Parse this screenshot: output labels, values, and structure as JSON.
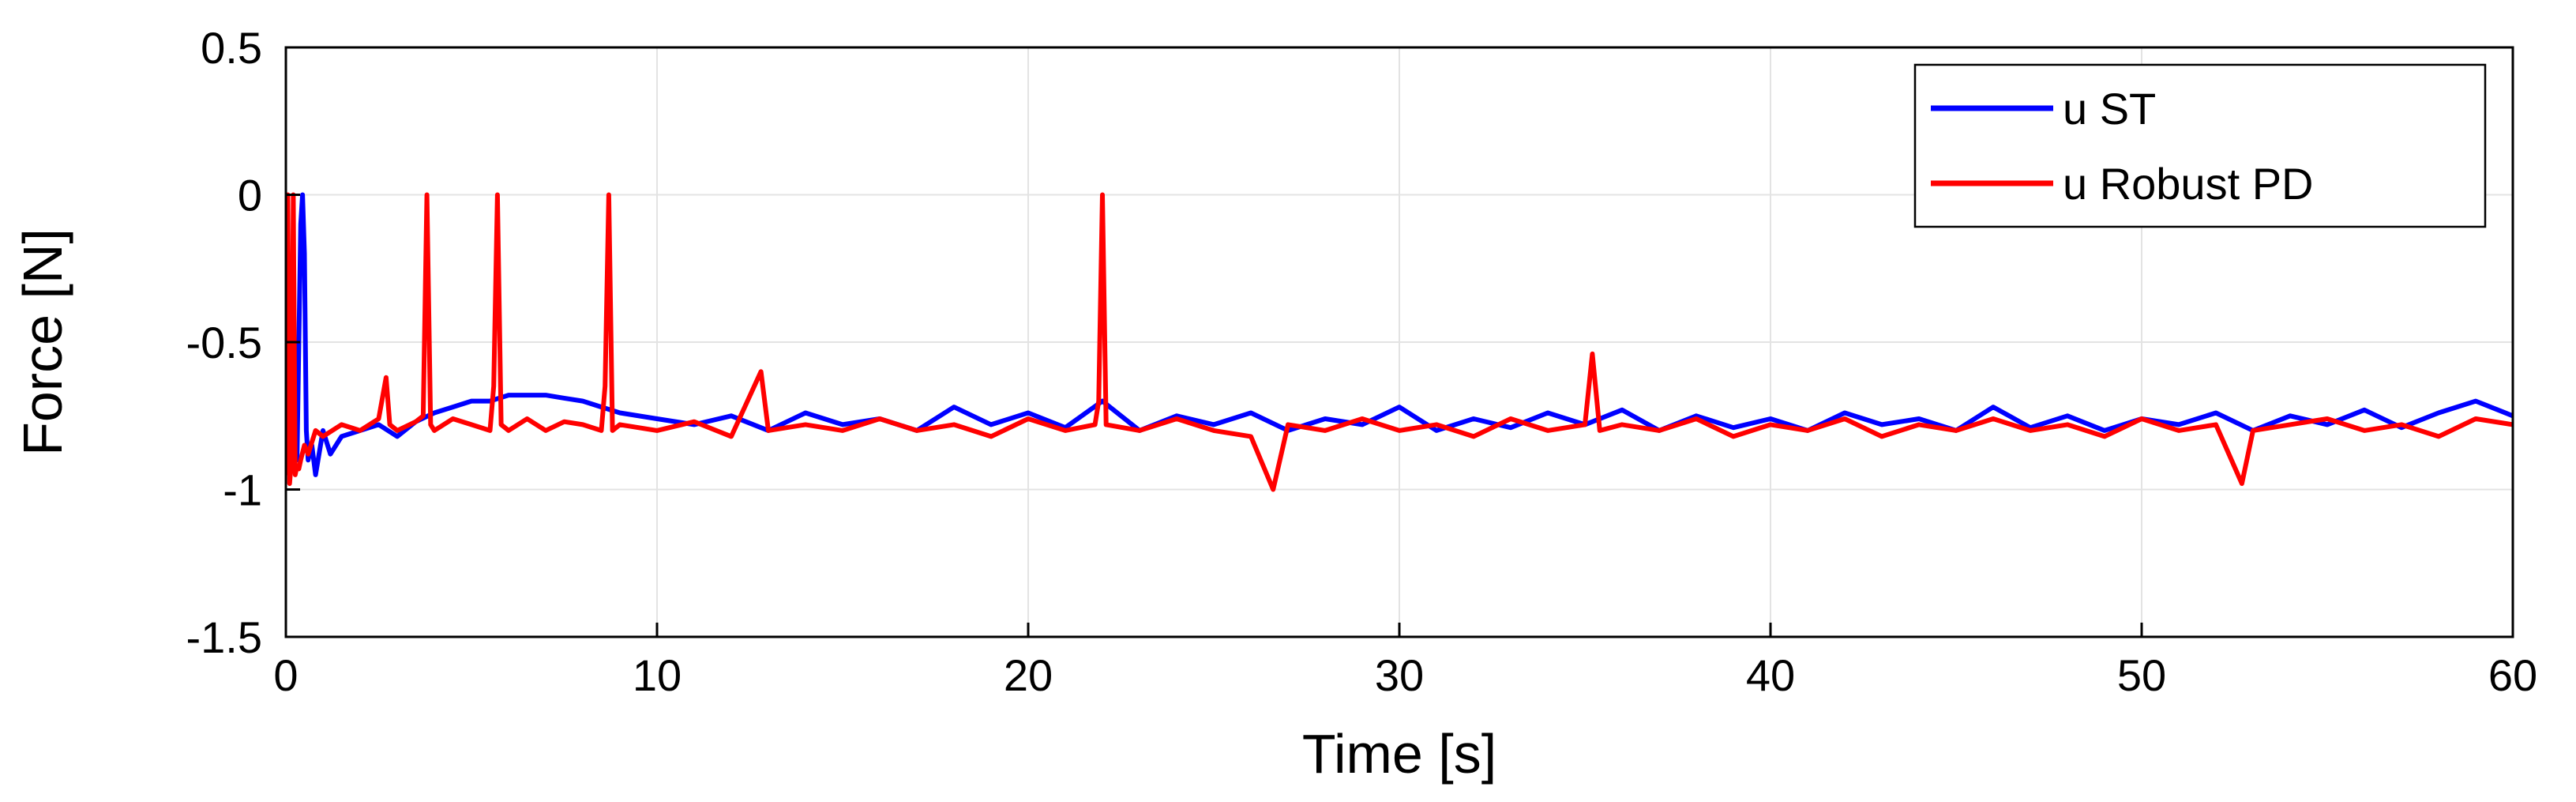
{
  "chart_data": {
    "type": "line",
    "title": "",
    "xlabel": "Time [s]",
    "ylabel": "Force [N]",
    "xlim": [
      0,
      60
    ],
    "ylim": [
      -1.5,
      0.5
    ],
    "xticks": [
      0,
      10,
      20,
      30,
      40,
      50,
      60
    ],
    "xtick_labels": [
      "0",
      "10",
      "20",
      "30",
      "40",
      "50",
      "60"
    ],
    "yticks": [
      -1.5,
      -1,
      -0.5,
      0,
      0.5
    ],
    "ytick_labels": [
      "-1.5",
      "-1",
      "-0.5",
      "0",
      "0.5"
    ],
    "grid": true,
    "legend_position": "top-right",
    "series": [
      {
        "name": "u ST",
        "color": "#0000ff",
        "x": [
          0,
          0.1,
          0.2,
          0.3,
          0.4,
          0.45,
          0.5,
          0.55,
          0.6,
          0.7,
          0.8,
          1.0,
          1.2,
          1.5,
          2,
          2.5,
          3,
          3.5,
          4,
          4.5,
          5,
          5.5,
          6,
          6.5,
          7,
          7.5,
          8,
          8.5,
          9,
          10,
          11,
          12,
          13,
          14,
          15,
          16,
          17,
          18,
          19,
          20,
          21,
          22,
          23,
          24,
          25,
          26,
          27,
          28,
          29,
          30,
          31,
          32,
          33,
          34,
          35,
          36,
          37,
          38,
          39,
          40,
          41,
          42,
          43,
          44,
          45,
          46,
          47,
          48,
          49,
          50,
          51,
          52,
          53,
          54,
          55,
          56,
          57,
          58,
          59,
          60
        ],
        "y": [
          -0.85,
          -0.95,
          -0.88,
          -0.9,
          -0.1,
          0.0,
          -0.2,
          -0.8,
          -0.9,
          -0.85,
          -0.95,
          -0.8,
          -0.88,
          -0.82,
          -0.8,
          -0.78,
          -0.82,
          -0.77,
          -0.74,
          -0.72,
          -0.7,
          -0.7,
          -0.68,
          -0.68,
          -0.68,
          -0.69,
          -0.7,
          -0.72,
          -0.74,
          -0.76,
          -0.78,
          -0.75,
          -0.8,
          -0.74,
          -0.78,
          -0.76,
          -0.8,
          -0.72,
          -0.78,
          -0.74,
          -0.79,
          -0.7,
          -0.8,
          -0.75,
          -0.78,
          -0.74,
          -0.8,
          -0.76,
          -0.78,
          -0.72,
          -0.8,
          -0.76,
          -0.79,
          -0.74,
          -0.78,
          -0.73,
          -0.8,
          -0.75,
          -0.79,
          -0.76,
          -0.8,
          -0.74,
          -0.78,
          -0.76,
          -0.8,
          -0.72,
          -0.79,
          -0.75,
          -0.8,
          -0.76,
          -0.78,
          -0.74,
          -0.8,
          -0.75,
          -0.78,
          -0.73,
          -0.79,
          -0.74,
          -0.7,
          -0.75
        ]
      },
      {
        "name": "u Robust PD",
        "color": "#ff0000",
        "x": [
          0,
          0.05,
          0.1,
          0.15,
          0.2,
          0.25,
          0.3,
          0.35,
          0.4,
          0.5,
          0.6,
          0.8,
          1.0,
          1.5,
          2.0,
          2.5,
          2.7,
          2.8,
          3.0,
          3.5,
          3.7,
          3.8,
          3.9,
          4.0,
          4.5,
          5.0,
          5.5,
          5.6,
          5.7,
          5.8,
          6.0,
          6.5,
          7.0,
          7.5,
          8.0,
          8.5,
          8.6,
          8.7,
          8.8,
          9.0,
          10,
          11,
          12,
          12.8,
          13,
          14,
          15,
          16,
          17,
          18,
          19,
          20,
          21,
          21.8,
          21.9,
          22.0,
          22.1,
          23,
          24,
          25,
          26,
          26.6,
          27,
          28,
          29,
          30,
          31,
          32,
          33,
          34,
          35,
          35.2,
          35.4,
          36,
          37,
          38,
          39,
          40,
          41,
          42,
          43,
          44,
          45,
          46,
          47,
          48,
          49,
          50,
          51,
          52,
          52.7,
          53,
          54,
          55,
          56,
          57,
          58,
          59,
          60
        ],
        "y": [
          -0.95,
          0.0,
          -0.98,
          -0.9,
          0.0,
          -0.95,
          -0.92,
          -0.93,
          -0.9,
          -0.85,
          -0.88,
          -0.8,
          -0.82,
          -0.78,
          -0.8,
          -0.76,
          -0.62,
          -0.78,
          -0.8,
          -0.77,
          -0.75,
          0.0,
          -0.78,
          -0.8,
          -0.76,
          -0.78,
          -0.8,
          -0.65,
          0.0,
          -0.78,
          -0.8,
          -0.76,
          -0.8,
          -0.77,
          -0.78,
          -0.8,
          -0.65,
          0.0,
          -0.8,
          -0.78,
          -0.8,
          -0.77,
          -0.82,
          -0.6,
          -0.8,
          -0.78,
          -0.8,
          -0.76,
          -0.8,
          -0.78,
          -0.82,
          -0.76,
          -0.8,
          -0.78,
          -0.7,
          0.0,
          -0.78,
          -0.8,
          -0.76,
          -0.8,
          -0.82,
          -1.0,
          -0.78,
          -0.8,
          -0.76,
          -0.8,
          -0.78,
          -0.82,
          -0.76,
          -0.8,
          -0.78,
          -0.54,
          -0.8,
          -0.78,
          -0.8,
          -0.76,
          -0.82,
          -0.78,
          -0.8,
          -0.76,
          -0.82,
          -0.78,
          -0.8,
          -0.76,
          -0.8,
          -0.78,
          -0.82,
          -0.76,
          -0.8,
          -0.78,
          -0.98,
          -0.8,
          -0.78,
          -0.76,
          -0.8,
          -0.78,
          -0.82,
          -0.76,
          -0.78
        ]
      }
    ]
  }
}
